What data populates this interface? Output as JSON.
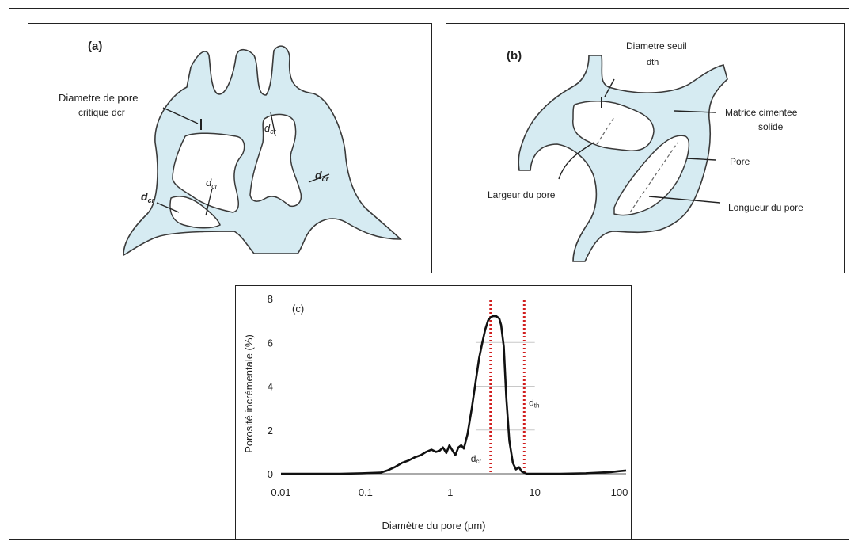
{
  "panel_a": {
    "tag": "(a)",
    "critical_label_line1": "Diametre de pore",
    "critical_label_line2": "critique dcr",
    "dcr_symbol": "d",
    "dcr_subscript": "cr"
  },
  "panel_b": {
    "tag": "(b)",
    "threshold_label_line1": "Diametre seuil",
    "threshold_label_line2": "dth",
    "matrix_label_line1": "Matrice cimentee",
    "matrix_label_line2": "solide",
    "pore_label": "Pore",
    "width_label": "Largeur du pore",
    "length_label": "Longueur du pore"
  },
  "chart_data": {
    "type": "line",
    "panel_tag": "(c)",
    "xlabel": "Diamètre du pore (µm)",
    "ylabel": "Porosité incrémentale (%)",
    "x_scale": "log",
    "xlim": [
      0.01,
      120
    ],
    "ylim": [
      0,
      8
    ],
    "x_ticks": [
      0.01,
      0.1,
      1,
      10,
      100
    ],
    "x_tick_labels": [
      "0.01",
      "0.1",
      "1",
      "10",
      "100"
    ],
    "y_ticks": [
      0,
      2,
      4,
      6,
      8
    ],
    "y_tick_labels": [
      "0",
      "2",
      "4",
      "6",
      "8"
    ],
    "grid": "horizontal partial",
    "series": [
      {
        "x": [
          0.01,
          0.05,
          0.09,
          0.15,
          0.18,
          0.22,
          0.27,
          0.32,
          0.38,
          0.45,
          0.52,
          0.6,
          0.68,
          0.75,
          0.82,
          0.9,
          0.98,
          1.05,
          1.15,
          1.25,
          1.35,
          1.45,
          1.6,
          1.8,
          2.0,
          2.2,
          2.4,
          2.6,
          2.8,
          3.0,
          3.2,
          3.5,
          3.8,
          4.0,
          4.3,
          4.6,
          5.0,
          5.5,
          6.0,
          6.5,
          7.0,
          7.5,
          8.0,
          9.0,
          12,
          20,
          40,
          80,
          100,
          120
        ],
        "y": [
          0,
          0,
          0.02,
          0.05,
          0.15,
          0.3,
          0.5,
          0.6,
          0.75,
          0.85,
          1.0,
          1.1,
          1.0,
          1.05,
          1.2,
          0.95,
          1.3,
          1.1,
          0.85,
          1.2,
          1.3,
          1.15,
          1.8,
          3.0,
          4.2,
          5.3,
          6.0,
          6.6,
          7.0,
          7.15,
          7.2,
          7.2,
          7.1,
          6.8,
          5.8,
          3.5,
          1.5,
          0.5,
          0.2,
          0.3,
          0.1,
          0.05,
          0,
          0,
          0,
          0,
          0.02,
          0.08,
          0.12,
          0.15
        ]
      }
    ],
    "vertical_lines": [
      {
        "x": 3.0,
        "color": "#d11f1f",
        "style": "dotted"
      },
      {
        "x": 7.5,
        "color": "#d11f1f",
        "style": "dotted"
      }
    ],
    "annotations": [
      {
        "text": "dcr",
        "x": 1.75,
        "y": 0.55
      },
      {
        "text": "dth",
        "x": 8.5,
        "y": 3.1
      }
    ]
  }
}
